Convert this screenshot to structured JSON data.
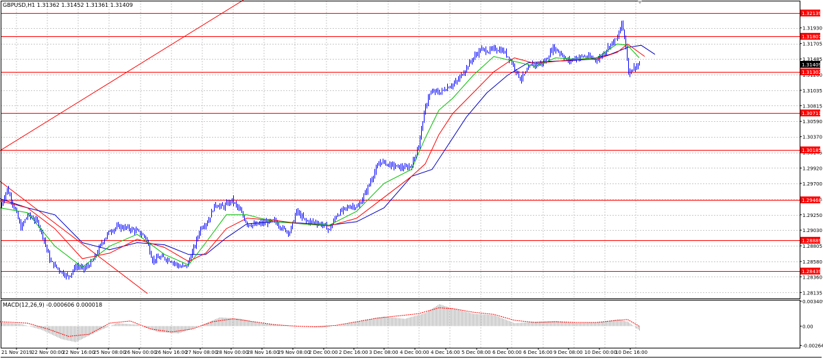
{
  "window": {
    "symbol_header": "GBPUSD,H1  1.31362 1.31452 1.31361 1.31409",
    "indicator_header": "MACD(12,26,9) -0.000606 0.000018"
  },
  "colors": {
    "background": "#ffffff",
    "frame": "#000000",
    "grid": "#c8c8c8",
    "candles": "#0000ff",
    "sma_fast": "#00c000",
    "sma_mid": "#ff0000",
    "sma_slow": "#0000c0",
    "level_line": "#ff0000",
    "level_tag_bg": "#ff0000",
    "level_tag_text": "#ffffff",
    "price_tag_bg": "#000000",
    "price_tag_text": "#ffffff",
    "macd_hist": "#b0b0b0",
    "macd_signal": "#ff0000"
  },
  "chart_data": [
    {
      "type": "candlestick",
      "title": "GBPUSD,H1",
      "ohlc_header": {
        "open": 1.31362,
        "high": 1.31452,
        "low": 1.31361,
        "close": 1.31409
      },
      "ylim": [
        1.2805,
        1.3232
      ],
      "y_ticks": [
        "1.31930",
        "1.31705",
        "1.31485",
        "1.31260",
        "1.31035",
        "1.30815",
        "1.30590",
        "1.30370",
        "1.30145",
        "1.29920",
        "1.29700",
        "1.29475",
        "1.29250",
        "1.29030",
        "1.28805",
        "1.28580",
        "1.28360",
        "1.28135"
      ],
      "x_ticks": [
        "21 Nov 2019",
        "22 Nov 00:00",
        "22 Nov 16:00",
        "25 Nov 08:00",
        "26 Nov 00:00",
        "26 Nov 16:00",
        "27 Nov 08:00",
        "28 Nov 00:00",
        "28 Nov 16:00",
        "29 Nov 08:00",
        "2 Dec 00:00",
        "2 Dec 16:00",
        "3 Dec 08:00",
        "4 Dec 00:00",
        "4 Dec 16:00",
        "5 Dec 08:00",
        "6 Dec 00:00",
        "6 Dec 16:00",
        "9 Dec 08:00",
        "10 Dec 00:00",
        "10 Dec 16:00"
      ],
      "horizontal_levels": [
        "1.32139",
        "1.31807",
        "1.31302",
        "1.30711",
        "1.30185",
        "1.29468",
        "1.28889",
        "1.28439"
      ],
      "current_price": "1.31409",
      "close_path": [
        [
          0,
          1.2935
        ],
        [
          10,
          1.2962
        ],
        [
          22,
          1.2932
        ],
        [
          30,
          1.2906
        ],
        [
          40,
          1.2925
        ],
        [
          55,
          1.2914
        ],
        [
          63,
          1.2892
        ],
        [
          73,
          1.2858
        ],
        [
          87,
          1.2845
        ],
        [
          99,
          1.2836
        ],
        [
          111,
          1.2852
        ],
        [
          122,
          1.2847
        ],
        [
          135,
          1.2858
        ],
        [
          148,
          1.2885
        ],
        [
          160,
          1.2902
        ],
        [
          172,
          1.2908
        ],
        [
          185,
          1.2906
        ],
        [
          198,
          1.2902
        ],
        [
          212,
          1.2893
        ],
        [
          222,
          1.286
        ],
        [
          235,
          1.2864
        ],
        [
          248,
          1.286
        ],
        [
          262,
          1.285
        ],
        [
          272,
          1.2852
        ],
        [
          282,
          1.2876
        ],
        [
          292,
          1.2906
        ],
        [
          303,
          1.2916
        ],
        [
          313,
          1.294
        ],
        [
          325,
          1.2936
        ],
        [
          338,
          1.2946
        ],
        [
          350,
          1.293
        ],
        [
          360,
          1.2912
        ],
        [
          372,
          1.291
        ],
        [
          386,
          1.2914
        ],
        [
          400,
          1.2916
        ],
        [
          412,
          1.2905
        ],
        [
          422,
          1.29
        ],
        [
          432,
          1.293
        ],
        [
          445,
          1.2916
        ],
        [
          460,
          1.2914
        ],
        [
          472,
          1.291
        ],
        [
          480,
          1.2903
        ],
        [
          490,
          1.2924
        ],
        [
          500,
          1.2932
        ],
        [
          512,
          1.2938
        ],
        [
          522,
          1.2936
        ],
        [
          535,
          1.2962
        ],
        [
          545,
          1.2985
        ],
        [
          555,
          1.3002
        ],
        [
          566,
          1.2997
        ],
        [
          578,
          1.2994
        ],
        [
          590,
          1.2992
        ],
        [
          600,
          1.2996
        ],
        [
          610,
          1.3025
        ],
        [
          617,
          1.3065
        ],
        [
          624,
          1.3095
        ],
        [
          632,
          1.3102
        ],
        [
          641,
          1.31
        ],
        [
          652,
          1.3108
        ],
        [
          665,
          1.3115
        ],
        [
          677,
          1.3132
        ],
        [
          688,
          1.3148
        ],
        [
          700,
          1.3162
        ],
        [
          712,
          1.316
        ],
        [
          722,
          1.3163
        ],
        [
          733,
          1.316
        ],
        [
          742,
          1.315
        ],
        [
          750,
          1.3136
        ],
        [
          758,
          1.312
        ],
        [
          766,
          1.3128
        ],
        [
          774,
          1.314
        ],
        [
          784,
          1.314
        ],
        [
          795,
          1.3145
        ],
        [
          806,
          1.3165
        ],
        [
          817,
          1.3157
        ],
        [
          828,
          1.3145
        ],
        [
          839,
          1.315
        ],
        [
          850,
          1.3152
        ],
        [
          862,
          1.315
        ],
        [
          872,
          1.3148
        ],
        [
          880,
          1.3158
        ],
        [
          890,
          1.317
        ],
        [
          900,
          1.3178
        ],
        [
          906,
          1.32
        ],
        [
          911,
          1.3175
        ],
        [
          916,
          1.313
        ],
        [
          924,
          1.3136
        ],
        [
          932,
          1.3141
        ]
      ],
      "sma_fast": [
        [
          0,
          1.2935
        ],
        [
          40,
          1.2928
        ],
        [
          80,
          1.288
        ],
        [
          120,
          1.285
        ],
        [
          160,
          1.288
        ],
        [
          200,
          1.2897
        ],
        [
          240,
          1.2868
        ],
        [
          275,
          1.2853
        ],
        [
          300,
          1.2885
        ],
        [
          330,
          1.2925
        ],
        [
          360,
          1.2925
        ],
        [
          400,
          1.2915
        ],
        [
          440,
          1.2912
        ],
        [
          480,
          1.291
        ],
        [
          520,
          1.293
        ],
        [
          560,
          1.297
        ],
        [
          600,
          1.299
        ],
        [
          620,
          1.3035
        ],
        [
          640,
          1.3075
        ],
        [
          660,
          1.3092
        ],
        [
          690,
          1.3125
        ],
        [
          720,
          1.3152
        ],
        [
          750,
          1.3145
        ],
        [
          780,
          1.3138
        ],
        [
          810,
          1.315
        ],
        [
          840,
          1.3148
        ],
        [
          870,
          1.315
        ],
        [
          900,
          1.317
        ],
        [
          915,
          1.3168
        ],
        [
          932,
          1.315
        ]
      ],
      "sma_mid": [
        [
          0,
          1.2945
        ],
        [
          40,
          1.2935
        ],
        [
          80,
          1.2905
        ],
        [
          120,
          1.2862
        ],
        [
          160,
          1.287
        ],
        [
          200,
          1.289
        ],
        [
          240,
          1.2878
        ],
        [
          275,
          1.2858
        ],
        [
          300,
          1.287
        ],
        [
          330,
          1.2905
        ],
        [
          360,
          1.292
        ],
        [
          400,
          1.2917
        ],
        [
          440,
          1.2912
        ],
        [
          480,
          1.2909
        ],
        [
          520,
          1.292
        ],
        [
          560,
          1.295
        ],
        [
          600,
          1.298
        ],
        [
          620,
          1.2998
        ],
        [
          640,
          1.304
        ],
        [
          660,
          1.307
        ],
        [
          690,
          1.31
        ],
        [
          720,
          1.313
        ],
        [
          750,
          1.315
        ],
        [
          780,
          1.3142
        ],
        [
          810,
          1.3145
        ],
        [
          840,
          1.3148
        ],
        [
          870,
          1.3148
        ],
        [
          900,
          1.3158
        ],
        [
          915,
          1.317
        ],
        [
          940,
          1.3152
        ]
      ],
      "sma_slow": [
        [
          0,
          1.2948
        ],
        [
          40,
          1.2935
        ],
        [
          80,
          1.2925
        ],
        [
          120,
          1.2885
        ],
        [
          160,
          1.2875
        ],
        [
          200,
          1.2885
        ],
        [
          240,
          1.2882
        ],
        [
          275,
          1.2868
        ],
        [
          300,
          1.2868
        ],
        [
          330,
          1.2892
        ],
        [
          360,
          1.2912
        ],
        [
          400,
          1.2915
        ],
        [
          440,
          1.2913
        ],
        [
          480,
          1.291
        ],
        [
          520,
          1.2915
        ],
        [
          560,
          1.2935
        ],
        [
          600,
          1.298
        ],
        [
          630,
          1.299
        ],
        [
          650,
          1.302
        ],
        [
          680,
          1.3065
        ],
        [
          710,
          1.31
        ],
        [
          740,
          1.3125
        ],
        [
          770,
          1.3143
        ],
        [
          800,
          1.3145
        ],
        [
          830,
          1.3146
        ],
        [
          860,
          1.3148
        ],
        [
          890,
          1.3155
        ],
        [
          915,
          1.3165
        ],
        [
          935,
          1.3168
        ],
        [
          955,
          1.3155
        ]
      ],
      "trend_lines": [
        {
          "from": [
            0,
            1.3017
          ],
          "to": [
            355,
            1.3233
          ]
        },
        {
          "from": [
            0,
            1.2973
          ],
          "to": [
            215,
            1.2812
          ]
        }
      ]
    },
    {
      "type": "bar",
      "title": "MACD(12,26,9)",
      "values_header": {
        "main": -0.000606,
        "signal": 1.8e-05
      },
      "ylim": [
        -0.00296,
        0.0036
      ],
      "y_ticks": [
        "0.003409",
        "0.00",
        "-0.00264"
      ],
      "histogram": [
        [
          0,
          0.0005
        ],
        [
          30,
          0.0003
        ],
        [
          60,
          -0.0005
        ],
        [
          90,
          -0.0018
        ],
        [
          110,
          -0.0022
        ],
        [
          140,
          -0.0008
        ],
        [
          170,
          0.0004
        ],
        [
          200,
          0.0002
        ],
        [
          230,
          -0.0008
        ],
        [
          260,
          -0.001
        ],
        [
          290,
          0.0
        ],
        [
          320,
          0.0012
        ],
        [
          350,
          0.001
        ],
        [
          380,
          0.0004
        ],
        [
          410,
          0.0001
        ],
        [
          440,
          0.0
        ],
        [
          470,
          -0.0002
        ],
        [
          500,
          0.0002
        ],
        [
          530,
          0.0008
        ],
        [
          560,
          0.0013
        ],
        [
          590,
          0.001
        ],
        [
          620,
          0.0018
        ],
        [
          640,
          0.003
        ],
        [
          660,
          0.0024
        ],
        [
          690,
          0.0017
        ],
        [
          720,
          0.0015
        ],
        [
          750,
          0.0004
        ],
        [
          780,
          0.0006
        ],
        [
          810,
          0.0007
        ],
        [
          840,
          0.0004
        ],
        [
          870,
          0.0005
        ],
        [
          900,
          0.0009
        ],
        [
          915,
          0.0006
        ],
        [
          932,
          -0.0006
        ]
      ],
      "signal_line": [
        [
          0,
          0.0006
        ],
        [
          40,
          0.0004
        ],
        [
          70,
          -0.0004
        ],
        [
          100,
          -0.0014
        ],
        [
          130,
          -0.0011
        ],
        [
          160,
          0.0004
        ],
        [
          190,
          0.0007
        ],
        [
          220,
          -0.0004
        ],
        [
          250,
          -0.0008
        ],
        [
          280,
          -0.0004
        ],
        [
          310,
          0.0006
        ],
        [
          340,
          0.001
        ],
        [
          370,
          0.0006
        ],
        [
          400,
          0.0002
        ],
        [
          430,
          0.0
        ],
        [
          460,
          -0.0001
        ],
        [
          490,
          0.0001
        ],
        [
          520,
          0.0006
        ],
        [
          550,
          0.0011
        ],
        [
          580,
          0.0014
        ],
        [
          610,
          0.0017
        ],
        [
          640,
          0.0025
        ],
        [
          660,
          0.0024
        ],
        [
          690,
          0.0019
        ],
        [
          720,
          0.0016
        ],
        [
          750,
          0.0008
        ],
        [
          780,
          0.0005
        ],
        [
          810,
          0.0006
        ],
        [
          840,
          0.0005
        ],
        [
          870,
          0.0005
        ],
        [
          900,
          0.0008
        ],
        [
          915,
          0.0009
        ],
        [
          932,
          0.0
        ]
      ]
    }
  ]
}
